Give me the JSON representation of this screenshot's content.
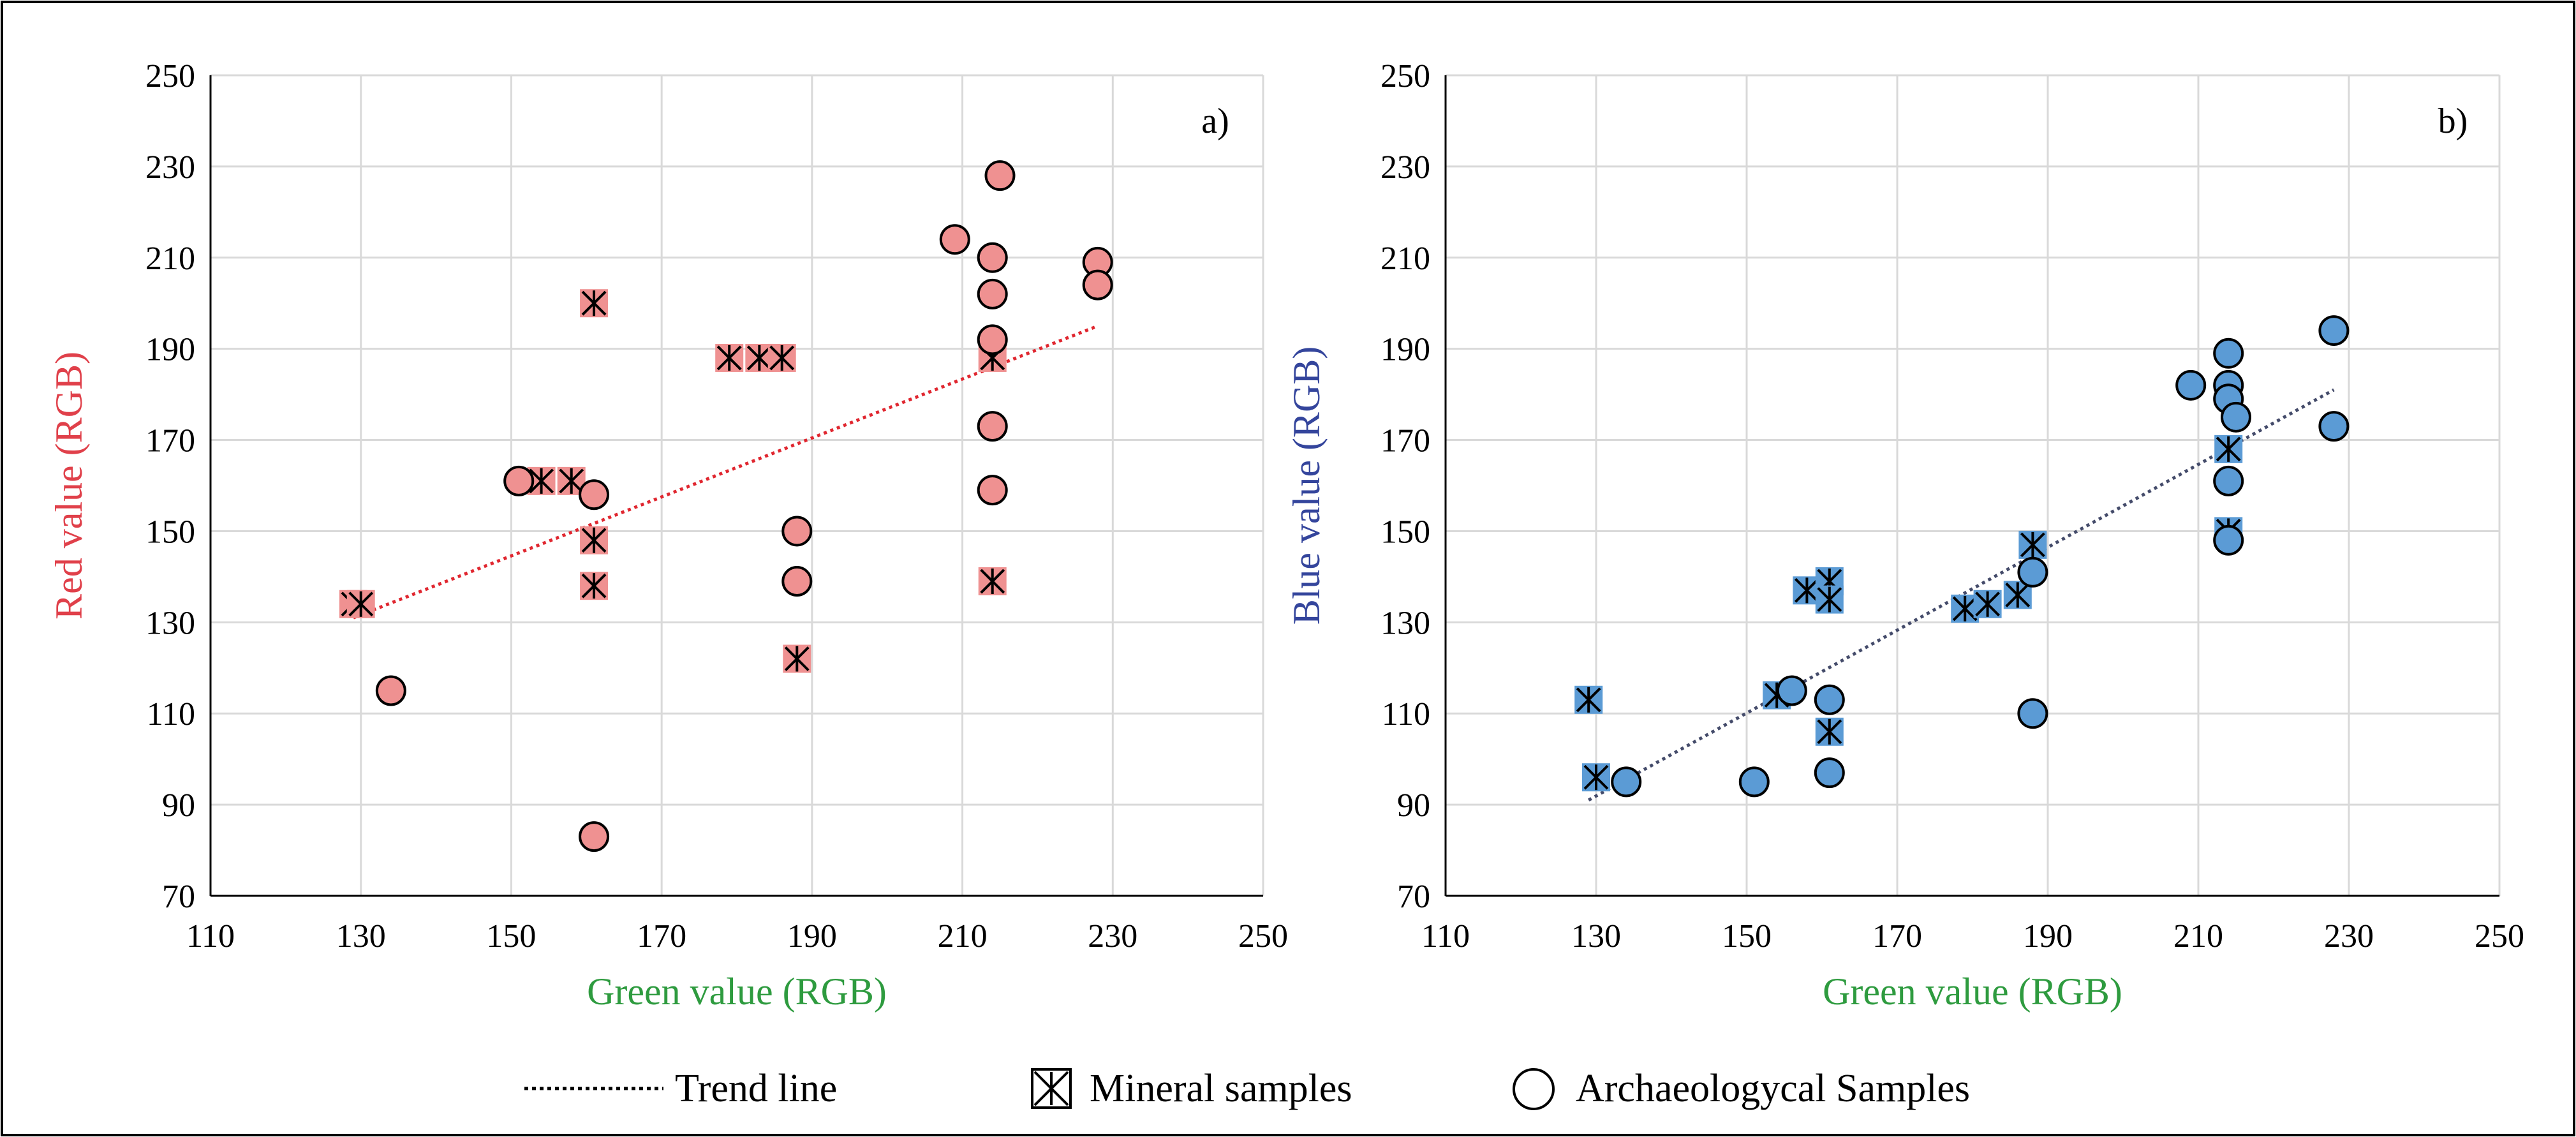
{
  "colors": {
    "green_label": "#2e9b3f",
    "red_label": "#e0404a",
    "blue_label": "#34459c",
    "red_fill": "#ef9191",
    "blue_fill": "#5b9bd5",
    "red_trend": "#e0262f",
    "blue_trend": "#444b6a"
  },
  "legend": {
    "trend": "Trend line",
    "mineral": "Mineral samples",
    "archaeo": "Archaeologycal Samples"
  },
  "chart_data": [
    {
      "type": "scatter",
      "panel": "a)",
      "xlabel": "Green value (RGB)",
      "ylabel": "Red value (RGB)",
      "xlim": [
        110,
        250
      ],
      "ylim": [
        70,
        250
      ],
      "xticks": [
        110,
        130,
        150,
        170,
        190,
        210,
        230,
        250
      ],
      "yticks": [
        70,
        90,
        110,
        130,
        150,
        170,
        190,
        210,
        230,
        250
      ],
      "trend": {
        "x": [
          129,
          228
        ],
        "y": [
          131,
          195
        ]
      },
      "series": [
        {
          "name": "Mineral samples",
          "marker": "boxed-x",
          "points": [
            [
              129,
              134
            ],
            [
              130,
              134
            ],
            [
              161,
              200
            ],
            [
              154,
              161
            ],
            [
              158,
              161
            ],
            [
              161,
              148
            ],
            [
              161,
              138
            ],
            [
              179,
              188
            ],
            [
              183,
              188
            ],
            [
              186,
              188
            ],
            [
              188,
              122
            ],
            [
              214,
              188
            ],
            [
              214,
              139
            ]
          ]
        },
        {
          "name": "Archaeologycal Samples",
          "marker": "circle",
          "points": [
            [
              134,
              115
            ],
            [
              151,
              161
            ],
            [
              161,
              158
            ],
            [
              161,
              83
            ],
            [
              188,
              150
            ],
            [
              188,
              139
            ],
            [
              209,
              214
            ],
            [
              215,
              228
            ],
            [
              214,
              210
            ],
            [
              214,
              202
            ],
            [
              214,
              192
            ],
            [
              214,
              173
            ],
            [
              214,
              159
            ],
            [
              228,
              209
            ],
            [
              228,
              204
            ]
          ]
        }
      ]
    },
    {
      "type": "scatter",
      "panel": "b)",
      "xlabel": "Green value (RGB)",
      "ylabel": "Blue value (RGB)",
      "xlim": [
        110,
        250
      ],
      "ylim": [
        70,
        250
      ],
      "xticks": [
        110,
        130,
        150,
        170,
        190,
        210,
        230,
        250
      ],
      "yticks": [
        70,
        90,
        110,
        130,
        150,
        170,
        190,
        210,
        230,
        250
      ],
      "trend": {
        "x": [
          129,
          228
        ],
        "y": [
          91,
          181
        ]
      },
      "series": [
        {
          "name": "Mineral samples",
          "marker": "boxed-x",
          "points": [
            [
              129,
              113
            ],
            [
              130,
              96
            ],
            [
              154,
              114
            ],
            [
              158,
              137
            ],
            [
              161,
              139
            ],
            [
              161,
              135
            ],
            [
              161,
              106
            ],
            [
              179,
              133
            ],
            [
              182,
              134
            ],
            [
              186,
              136
            ],
            [
              188,
              147
            ],
            [
              214,
              168
            ],
            [
              214,
              150
            ]
          ]
        },
        {
          "name": "Archaeologycal Samples",
          "marker": "circle",
          "points": [
            [
              134,
              95
            ],
            [
              151,
              95
            ],
            [
              156,
              115
            ],
            [
              161,
              113
            ],
            [
              161,
              97
            ],
            [
              188,
              141
            ],
            [
              188,
              110
            ],
            [
              209,
              182
            ],
            [
              214,
              189
            ],
            [
              214,
              182
            ],
            [
              214,
              179
            ],
            [
              215,
              175
            ],
            [
              214,
              161
            ],
            [
              214,
              148
            ],
            [
              228,
              194
            ],
            [
              228,
              173
            ]
          ]
        }
      ]
    }
  ]
}
